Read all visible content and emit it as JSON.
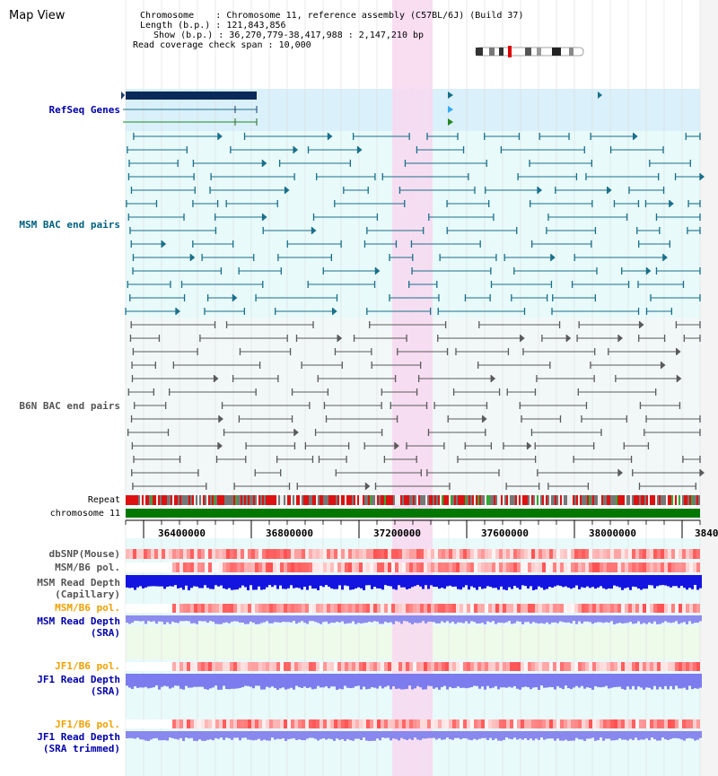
{
  "page": {
    "title": "Map View"
  },
  "info": {
    "chromosome_key": "Chromosome",
    "chromosome_value": "Chromosome 11, reference assembly (C57BL/6J) (Build 37)",
    "length_key": "Length (b.p.)",
    "length_value": "121,843,856",
    "show_key": "Show (b.p.)",
    "show_value": "36,270,779-38,417,988 : 2,147,210 bp",
    "span_key": "Read coverage check span",
    "span_value": "10,000"
  },
  "tracks": {
    "refseq": "RefSeq Genes",
    "msm_bac": "MSM BAC end pairs",
    "b6n_bac": "B6N BAC end pairs",
    "repeat": "Repeat",
    "chromosome": "chromosome 11",
    "dbsnp": "dbSNP(Mouse)",
    "msm_b6_pol_1": "MSM/B6 pol.",
    "msm_depth_cap_1": "MSM Read Depth",
    "msm_depth_cap_2": "(Capillary)",
    "msm_b6_pol_2": "MSM/B6 pol.",
    "msm_depth_sra_1": "MSM Read Depth",
    "msm_depth_sra_2": "(SRA)",
    "jf1_b6_pol_1": "JF1/B6 pol.",
    "jf1_depth_sra_1": "JF1 Read Depth",
    "jf1_depth_sra_2": "(SRA)",
    "jf1_b6_pol_2": "JF1/B6 pol.",
    "jf1_depth_trim_1": "JF1 Read Depth",
    "jf1_depth_trim_2": "(SRA trimmed)"
  },
  "axis": {
    "ticks": [
      "36400000",
      "36800000",
      "37200000",
      "37600000",
      "38000000",
      "3840"
    ]
  },
  "colors": {
    "highlight": "#f8d8f0",
    "bg_blue": "#daf0fa",
    "bg_cyan": "#e8fafa",
    "bg_green": "#eefaea",
    "msm_line": "#1a6f8a",
    "b6n_line": "#555555",
    "chrom_green": "#007700",
    "depth_blue": "#1010e0",
    "depth_light": "#8888ee"
  }
}
